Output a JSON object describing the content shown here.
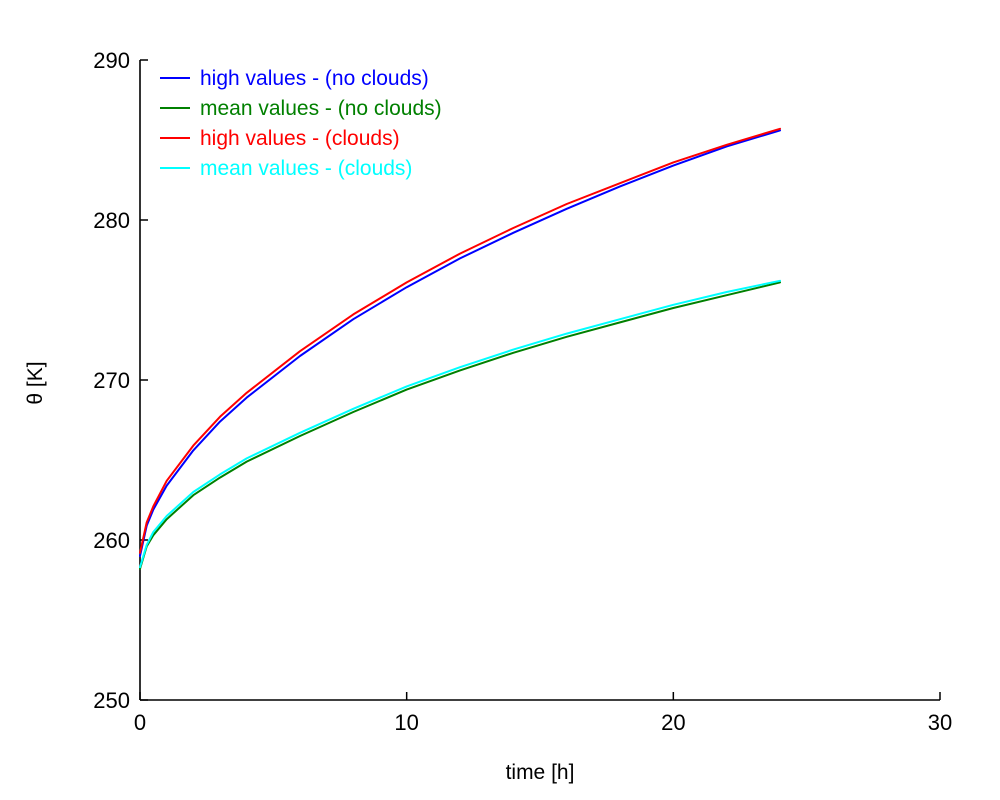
{
  "chart_data": {
    "type": "line",
    "title": "",
    "xlabel": "time [h]",
    "ylabel": "θ [K]",
    "xlim": [
      0,
      30
    ],
    "ylim": [
      250,
      290
    ],
    "xticks": [
      0,
      10,
      20,
      30
    ],
    "yticks": [
      250,
      260,
      270,
      280,
      290
    ],
    "grid": false,
    "legend_position": "top-left",
    "series": [
      {
        "name": "high values - (no clouds)",
        "color": "#0000ff",
        "x": [
          0,
          0.25,
          0.5,
          1,
          2,
          3,
          4,
          6,
          8,
          10,
          12,
          14,
          16,
          18,
          20,
          22,
          24
        ],
        "y": [
          259.0,
          260.9,
          261.9,
          263.4,
          265.6,
          267.4,
          268.9,
          271.5,
          273.8,
          275.8,
          277.6,
          279.2,
          280.7,
          282.1,
          283.4,
          284.6,
          285.6
        ]
      },
      {
        "name": "mean values - (no clouds)",
        "color": "#008000",
        "x": [
          0,
          0.25,
          0.5,
          1,
          2,
          3,
          4,
          6,
          8,
          10,
          12,
          14,
          16,
          18,
          20,
          22,
          24
        ],
        "y": [
          258.2,
          259.6,
          260.3,
          261.3,
          262.8,
          263.9,
          264.9,
          266.5,
          268.0,
          269.4,
          270.6,
          271.7,
          272.7,
          273.6,
          274.5,
          275.3,
          276.1
        ]
      },
      {
        "name": "high values - (clouds)",
        "color": "#ff0000",
        "x": [
          0,
          0.25,
          0.5,
          1,
          2,
          3,
          4,
          6,
          8,
          10,
          12,
          14,
          16,
          18,
          20,
          22,
          24
        ],
        "y": [
          259.2,
          261.1,
          262.1,
          263.7,
          265.9,
          267.7,
          269.2,
          271.8,
          274.1,
          276.1,
          277.9,
          279.5,
          281.0,
          282.3,
          283.6,
          284.7,
          285.7
        ]
      },
      {
        "name": "mean values - (clouds)",
        "color": "#00ffff",
        "x": [
          0,
          0.25,
          0.5,
          1,
          2,
          3,
          4,
          6,
          8,
          10,
          12,
          14,
          16,
          18,
          20,
          22,
          24
        ],
        "y": [
          258.3,
          259.7,
          260.5,
          261.5,
          263.0,
          264.1,
          265.1,
          266.7,
          268.2,
          269.6,
          270.8,
          271.9,
          272.9,
          273.8,
          274.7,
          275.5,
          276.2
        ]
      }
    ]
  }
}
